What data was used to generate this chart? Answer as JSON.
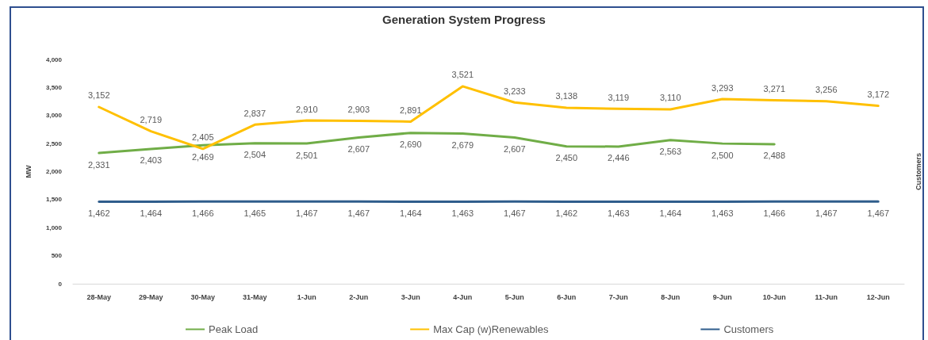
{
  "chart_data": {
    "type": "line",
    "title": "Generation System Progress",
    "ylabel": "MW",
    "y2label": "Customers",
    "categories": [
      "28-May",
      "29-May",
      "30-May",
      "31-May",
      "1-Jun",
      "2-Jun",
      "3-Jun",
      "4-Jun",
      "5-Jun",
      "6-Jun",
      "7-Jun",
      "8-Jun",
      "9-Jun",
      "10-Jun",
      "11-Jun",
      "12-Jun"
    ],
    "series": [
      {
        "name": "Peak Load",
        "color": "#70ad47",
        "values": [
          2331,
          2403,
          2469,
          2504,
          2501,
          2607,
          2690,
          2679,
          2607,
          2450,
          2446,
          2563,
          2500,
          2488,
          null,
          null
        ],
        "value_labels": [
          "2,331",
          "2,403",
          "2,469",
          "2,504",
          "2,501",
          "2,607",
          "2,690",
          "2,679",
          "2,607",
          "2,450",
          "2,446",
          "2,563",
          "2,500",
          "2,488",
          null,
          null
        ]
      },
      {
        "name": "Max Cap (w)Renewables",
        "color": "#ffc000",
        "values": [
          3152,
          2719,
          2405,
          2837,
          2910,
          2903,
          2891,
          3521,
          3233,
          3138,
          3119,
          3110,
          3293,
          3271,
          3256,
          3172
        ],
        "value_labels": [
          "3,152",
          "2,719",
          "2,405",
          "2,837",
          "2,910",
          "2,903",
          "2,891",
          "3,521",
          "3,233",
          "3,138",
          "3,119",
          "3,110",
          "3,293",
          "3,271",
          "3,256",
          "3,172"
        ]
      },
      {
        "name": "Customers",
        "color": "#2f5d8c",
        "values": [
          1462,
          1464,
          1466,
          1465,
          1467,
          1467,
          1464,
          1463,
          1467,
          1462,
          1463,
          1464,
          1463,
          1466,
          1467,
          1467
        ],
        "value_labels": [
          "1,462",
          "1,464",
          "1,466",
          "1,465",
          "1,467",
          "1,467",
          "1,464",
          "1,463",
          "1,467",
          "1,462",
          "1,463",
          "1,464",
          "1,463",
          "1,466",
          "1,467",
          "1,467"
        ]
      }
    ],
    "ylim": [
      0,
      4000
    ],
    "yticks": [
      0,
      500,
      {
        "value": 1000,
        "label": "1,000"
      },
      {
        "value": 1500,
        "label": "1,500"
      },
      {
        "value": 2000,
        "label": "2,000"
      },
      {
        "value": 2500,
        "label": "2,500"
      },
      {
        "value": 3000,
        "label": "3,000"
      },
      {
        "value": 3500,
        "label": "3,500"
      },
      {
        "value": 4000,
        "label": "4,000"
      }
    ],
    "legend": "bottom",
    "grid": false,
    "marker": "none",
    "line_style": "solid"
  }
}
